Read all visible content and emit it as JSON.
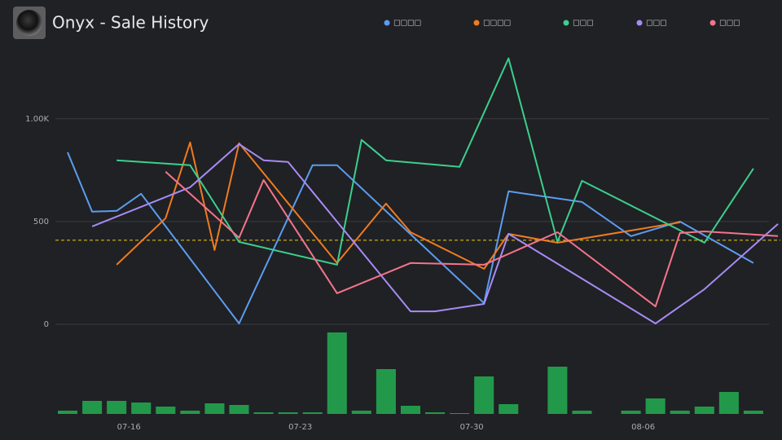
{
  "chart_data": {
    "type": "line",
    "title": "Onyx - Sale History",
    "xlim": [
      -3,
      26.6
    ],
    "xticks": [
      {
        "value": 0,
        "label": "07-16"
      },
      {
        "value": 7,
        "label": "07-23"
      },
      {
        "value": 14,
        "label": "07-30"
      },
      {
        "value": 21,
        "label": "08-06"
      }
    ],
    "ylim": [
      0,
      1340
    ],
    "yticks": [
      0,
      500,
      {
        "value": 1000,
        "label": "1.00K"
      }
    ],
    "grid": true,
    "legend": "top",
    "series": [
      {
        "name": "□□□□",
        "color": "#5b9cf2",
        "x": [
          -2.5,
          -1.5,
          -0.5,
          0.5,
          4.5,
          7.5,
          8.5,
          14.5,
          15.5,
          18.5,
          20.5,
          22.5,
          25.5
        ],
        "values": [
          837,
          548,
          552,
          635,
          4,
          774,
          774,
          103,
          647,
          595,
          429,
          500,
          298
        ]
      },
      {
        "name": "□□□□",
        "color": "#f07b1f",
        "x": [
          -0.5,
          1.5,
          2.5,
          3.5,
          4.5,
          8.5,
          10.5,
          11.5,
          14.5,
          15.5,
          17.5,
          22.5
        ],
        "values": [
          290,
          516,
          885,
          361,
          881,
          298,
          587,
          448,
          270,
          440,
          397,
          496
        ]
      },
      {
        "name": "□□□",
        "color": "#3ccf8e",
        "x": [
          -0.5,
          2.5,
          4.5,
          8.5,
          9.5,
          10.5,
          13.5,
          15.5,
          17.5,
          18.5,
          23.5,
          25.5
        ],
        "values": [
          798,
          774,
          401,
          290,
          897,
          798,
          766,
          1294,
          401,
          698,
          397,
          758
        ]
      },
      {
        "name": "□□□",
        "color": "#a78bf5",
        "x": [
          -1.5,
          2.5,
          4.5,
          5.5,
          6.5,
          11.5,
          12.5,
          14.5,
          15.5,
          21.5,
          23.5,
          26.5
        ],
        "values": [
          476,
          667,
          877,
          798,
          790,
          63,
          63,
          99,
          440,
          4,
          171,
          488
        ]
      },
      {
        "name": "□□□",
        "color": "#f5748c",
        "x": [
          1.5,
          4.5,
          5.5,
          8.5,
          11.5,
          14.5,
          17.5,
          21.5,
          22.5,
          23.5,
          26.5
        ],
        "values": [
          742,
          421,
          702,
          151,
          298,
          290,
          448,
          87,
          444,
          452,
          429
        ]
      }
    ],
    "average": {
      "value": 409,
      "color": "#d4b81c"
    },
    "volume": {
      "color": "#22994a",
      "ylim": [
        0,
        100
      ],
      "x": [
        -2.5,
        -1.5,
        -0.5,
        0.5,
        1.5,
        2.5,
        3.5,
        4.5,
        5.5,
        6.5,
        7.5,
        8.5,
        9.5,
        10.5,
        11.5,
        12.5,
        13.5,
        14.5,
        15.5,
        16.5,
        17.5,
        18.5,
        19.5,
        20.5,
        21.5,
        22.5,
        23.5,
        24.5,
        25.5
      ],
      "values": [
        4,
        16,
        16,
        14,
        9,
        4,
        13,
        11,
        2,
        2,
        2,
        100,
        4,
        55,
        10,
        2,
        1,
        46,
        12,
        0,
        58,
        4,
        0,
        4,
        19,
        4,
        9,
        27,
        4
      ]
    }
  }
}
